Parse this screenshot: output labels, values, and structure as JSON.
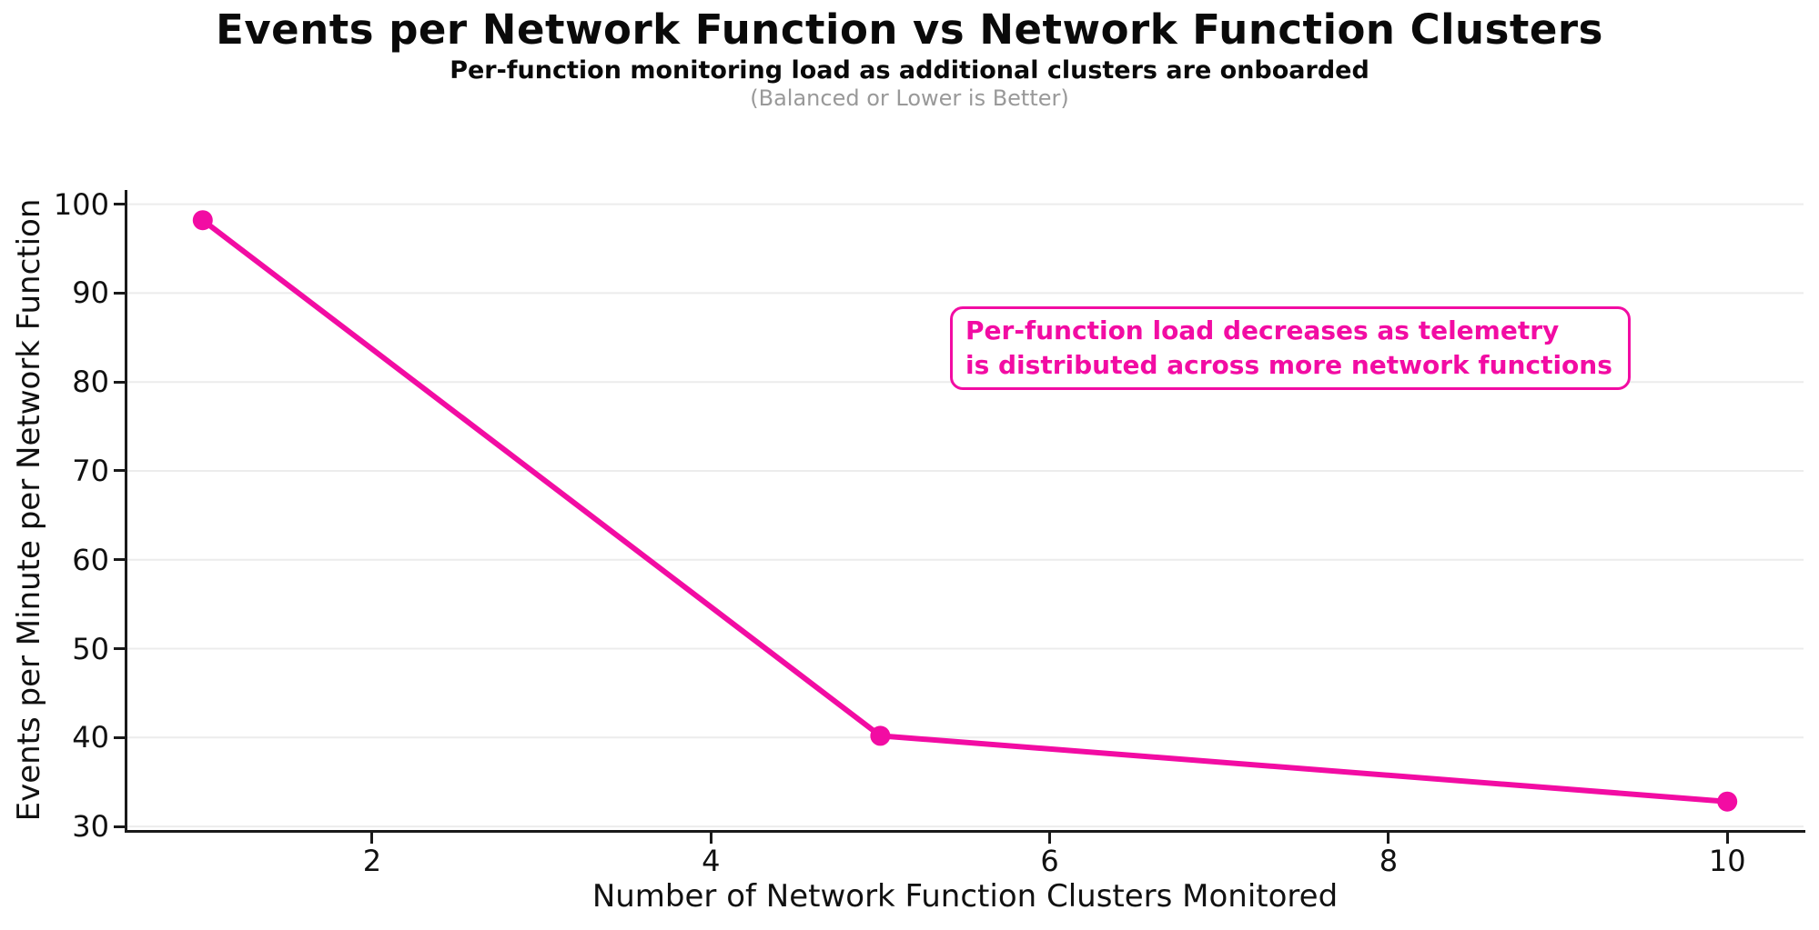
{
  "chart_data": {
    "type": "line",
    "title": "Events per Network Function vs Network Function Clusters",
    "subtitle": "Per-function monitoring load as additional clusters are onboarded",
    "note": "(Balanced or Lower is Better)",
    "xlabel": "Number of Network Function Clusters Monitored",
    "ylabel": "Events per Minute per Network Function",
    "series": [
      {
        "name": "Events per minute per network function",
        "x": [
          1,
          5,
          10
        ],
        "y": [
          98.2,
          40.2,
          32.8
        ]
      }
    ],
    "x_ticks": [
      2,
      4,
      6,
      8,
      10
    ],
    "y_ticks": [
      30,
      40,
      50,
      60,
      70,
      80,
      90,
      100
    ],
    "xlim": [
      0.55,
      10.45
    ],
    "ylim": [
      29.6,
      101.6
    ],
    "grid": "horizontal gridlines only",
    "legend": "none",
    "marker": "circle",
    "annotation": {
      "line1": "Per-function load decreases as telemetry",
      "line2": "is distributed across more network functions"
    }
  },
  "colors": {
    "accent": "#f20ca3",
    "grid": "#ececec",
    "axis": "#1a1a1a",
    "text": "#111111",
    "note_gray": "#999999",
    "background": "#ffffff"
  }
}
